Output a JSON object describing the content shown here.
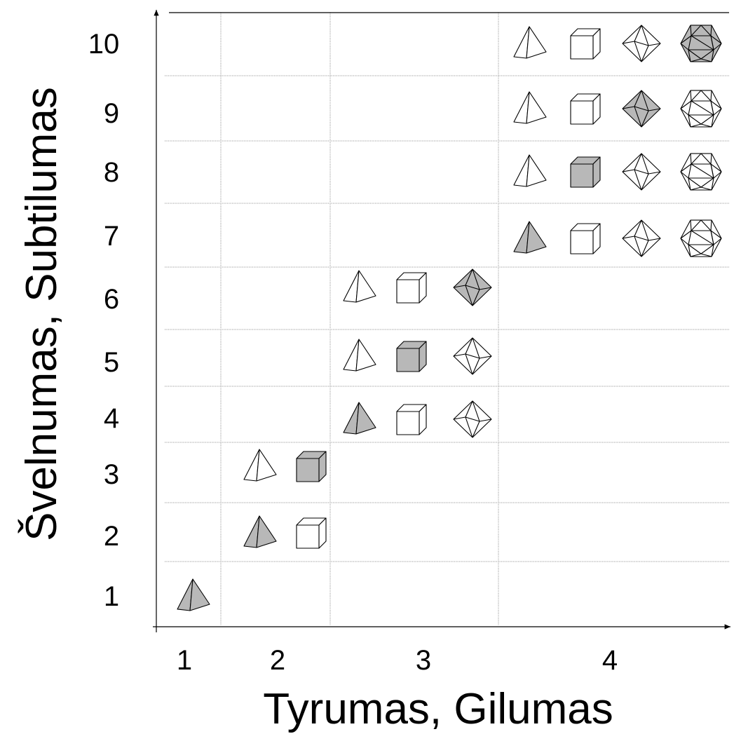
{
  "x_axis": {
    "label": "Tyrumas, Gilumas",
    "ticks": [
      "1",
      "2",
      "3",
      "4"
    ]
  },
  "y_axis": {
    "label": "Švelnumas, Subtilumas",
    "ticks": [
      "1",
      "2",
      "3",
      "4",
      "5",
      "6",
      "7",
      "8",
      "9",
      "10"
    ]
  },
  "colors": {
    "highlight": "#b8b8b8",
    "plain": "#ffffff",
    "line": "#000000"
  },
  "rows": [
    {
      "level": "1",
      "solids": [
        "tetrahedron"
      ],
      "highlighted": "tetrahedron"
    },
    {
      "level": "2",
      "solids": [
        "tetrahedron",
        "cube"
      ],
      "highlighted": "tetrahedron"
    },
    {
      "level": "3",
      "solids": [
        "tetrahedron",
        "cube"
      ],
      "highlighted": "cube"
    },
    {
      "level": "4",
      "solids": [
        "tetrahedron",
        "cube",
        "octahedron"
      ],
      "highlighted": "tetrahedron"
    },
    {
      "level": "5",
      "solids": [
        "tetrahedron",
        "cube",
        "octahedron"
      ],
      "highlighted": "cube"
    },
    {
      "level": "6",
      "solids": [
        "tetrahedron",
        "cube",
        "octahedron"
      ],
      "highlighted": "octahedron"
    },
    {
      "level": "7",
      "solids": [
        "tetrahedron",
        "cube",
        "octahedron",
        "icosahedron"
      ],
      "highlighted": "tetrahedron"
    },
    {
      "level": "8",
      "solids": [
        "tetrahedron",
        "cube",
        "octahedron",
        "icosahedron"
      ],
      "highlighted": "cube"
    },
    {
      "level": "9",
      "solids": [
        "tetrahedron",
        "cube",
        "octahedron",
        "icosahedron"
      ],
      "highlighted": "octahedron"
    },
    {
      "level": "10",
      "solids": [
        "tetrahedron",
        "cube",
        "octahedron",
        "icosahedron"
      ],
      "highlighted": "icosahedron"
    }
  ]
}
